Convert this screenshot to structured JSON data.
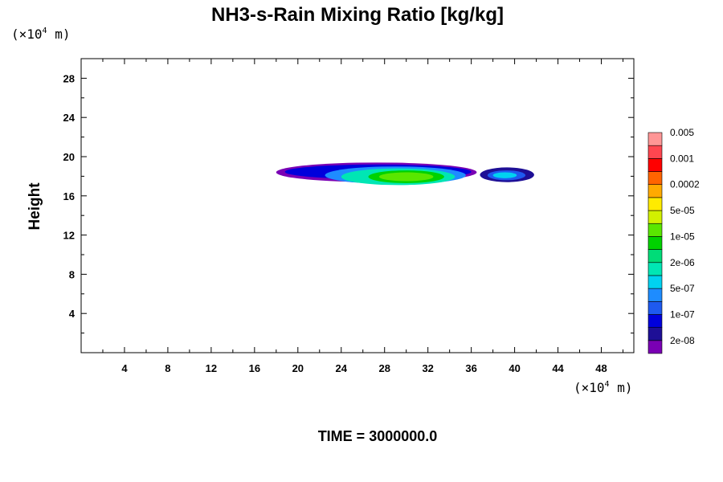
{
  "chart_data": {
    "type": "heatmap",
    "title": "NH3-s-Rain Mixing Ratio [kg/kg]",
    "ylabel": "Height",
    "x_unit": {
      "prefix": "(×10",
      "exp": "4",
      "suffix": " m)"
    },
    "y_unit": {
      "prefix": "(×10",
      "exp": "4",
      "suffix": " m)"
    },
    "xlim": [
      0,
      51
    ],
    "ylim": [
      0,
      30
    ],
    "x_ticks": [
      4,
      8,
      12,
      16,
      20,
      24,
      28,
      32,
      36,
      40,
      44,
      48
    ],
    "y_ticks": [
      4,
      8,
      12,
      16,
      20,
      24,
      28
    ],
    "colorbar": {
      "colors": [
        "#7a00b4",
        "#1e0f96",
        "#0000dc",
        "#1e5af0",
        "#1e8cff",
        "#00d2f0",
        "#00e6b4",
        "#00dc78",
        "#00d200",
        "#5ae600",
        "#d2f000",
        "#ffeb00",
        "#ffaa00",
        "#ff6400",
        "#ff0000",
        "#ff4650",
        "#ff9696"
      ],
      "labels": [
        "2e-08",
        "1e-07",
        "5e-07",
        "2e-06",
        "1e-05",
        "5e-05",
        "0.0002",
        "0.001",
        "0.005"
      ]
    },
    "field_regions": [
      {
        "x": [
          18.0,
          36.5
        ],
        "y": [
          17.4,
          19.4
        ],
        "level": 0
      },
      {
        "x": [
          18.8,
          36.0
        ],
        "y": [
          17.7,
          19.2
        ],
        "level": 2
      },
      {
        "x": [
          22.5,
          35.5
        ],
        "y": [
          17.2,
          19.0
        ],
        "level": 4
      },
      {
        "x": [
          24.0,
          34.5
        ],
        "y": [
          17.1,
          18.8
        ],
        "level": 6
      },
      {
        "x": [
          26.5,
          33.5
        ],
        "y": [
          17.3,
          18.6
        ],
        "level": 8
      },
      {
        "x": [
          27.5,
          32.5
        ],
        "y": [
          17.5,
          18.4
        ],
        "level": 9
      },
      {
        "x": [
          36.8,
          41.8
        ],
        "y": [
          17.4,
          18.9
        ],
        "level": 1
      },
      {
        "x": [
          37.5,
          41.0
        ],
        "y": [
          17.6,
          18.6
        ],
        "level": 3
      },
      {
        "x": [
          38.0,
          40.2
        ],
        "y": [
          17.8,
          18.4
        ],
        "level": 5
      }
    ]
  },
  "footer": {
    "time_text": "TIME = 3000000.0"
  }
}
